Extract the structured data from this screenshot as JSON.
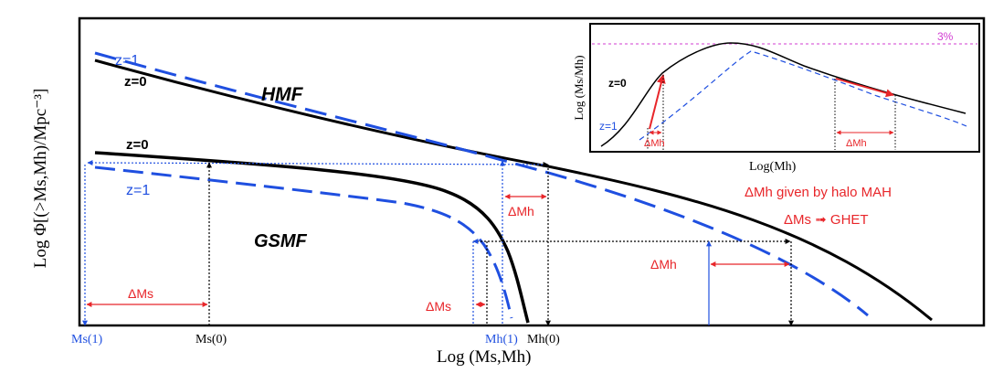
{
  "colors": {
    "black": "#000000",
    "blue": "#1f4fe0",
    "red": "#e8262a",
    "magenta": "#d23cd2",
    "frame": "#000000"
  },
  "main": {
    "y_axis_label": "Log Φ[(>Ms,Mh)/Mpc⁻³]",
    "x_axis_label": "Log (Ms,Mh)",
    "hmf_label": "HMF",
    "gsmf_label": "GSMF",
    "z1_hmf_label": "z=1",
    "z0_hmf_label": "z=0",
    "z0_gsmf_label": "z=0",
    "z1_gsmf_label": "z=1",
    "delta_ms_left": "ΔMs",
    "delta_ms_mid": "ΔMs",
    "delta_mh_upper": "ΔMh",
    "delta_mh_lower": "ΔMh",
    "note_mah": "ΔMh given by halo MAH",
    "note_ghet": "ΔMs ➟ GHET",
    "tick_ms1": "Ms(1)",
    "tick_ms0": "Ms(0)",
    "tick_mh1": "Mh(1)",
    "tick_mh0": "Mh(0)"
  },
  "inset": {
    "y_axis_label": "Log (Ms/Mh)",
    "x_axis_label": "Log(Mh)",
    "percent_label": "3%",
    "z0_label": "z=0",
    "z1_label": "z=1",
    "delta_mh_left": "ΔMh",
    "delta_mh_right": "ΔMh"
  }
}
